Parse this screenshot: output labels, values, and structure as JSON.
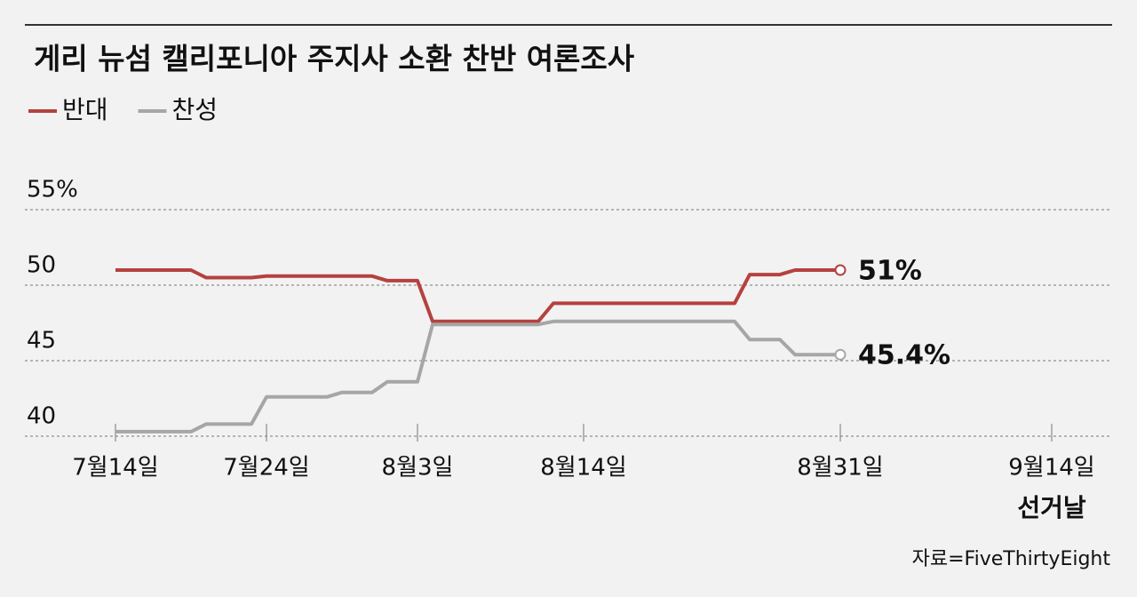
{
  "chart_data": {
    "type": "line",
    "title": "게리 뉴섬 캘리포니아 주지사 소환 찬반 여론조사",
    "source": "자료=FiveThirtyEight",
    "xlim": [
      -6,
      66
    ],
    "xticks": [
      {
        "value": 0,
        "label": "7월14일"
      },
      {
        "value": 10,
        "label": "7월24일"
      },
      {
        "value": 20,
        "label": "8월3일"
      },
      {
        "value": 31,
        "label": "8월14일"
      },
      {
        "value": 48,
        "label": "8월31일"
      },
      {
        "value": 62,
        "label": "9월14일"
      }
    ],
    "annotation": {
      "x": 62,
      "text": "선거날"
    },
    "ylim": [
      40,
      55
    ],
    "yticks": [
      {
        "value": 55,
        "label": "55%"
      },
      50,
      45,
      40
    ],
    "grid": true,
    "series": [
      {
        "name": "반대",
        "color": "#b5413f",
        "end_label": "51%",
        "x": [
          0,
          5,
          6,
          9,
          10,
          17,
          18,
          20,
          21,
          28,
          29,
          41,
          42,
          44,
          45,
          48
        ],
        "values": [
          51,
          51,
          50.5,
          50.5,
          50.6,
          50.6,
          50.3,
          50.3,
          47.6,
          47.6,
          48.8,
          48.8,
          50.7,
          50.7,
          51,
          51
        ]
      },
      {
        "name": "찬성",
        "color": "#a6a6a6",
        "end_label": "45.4%",
        "x": [
          0,
          5,
          6,
          9,
          10,
          14,
          15,
          17,
          18,
          20,
          21,
          28,
          29,
          41,
          42,
          44,
          45,
          48
        ],
        "values": [
          40.3,
          40.3,
          40.8,
          40.8,
          42.6,
          42.6,
          42.9,
          42.9,
          43.6,
          43.6,
          47.4,
          47.4,
          47.6,
          47.6,
          46.4,
          46.4,
          45.4,
          45.4
        ]
      }
    ]
  }
}
